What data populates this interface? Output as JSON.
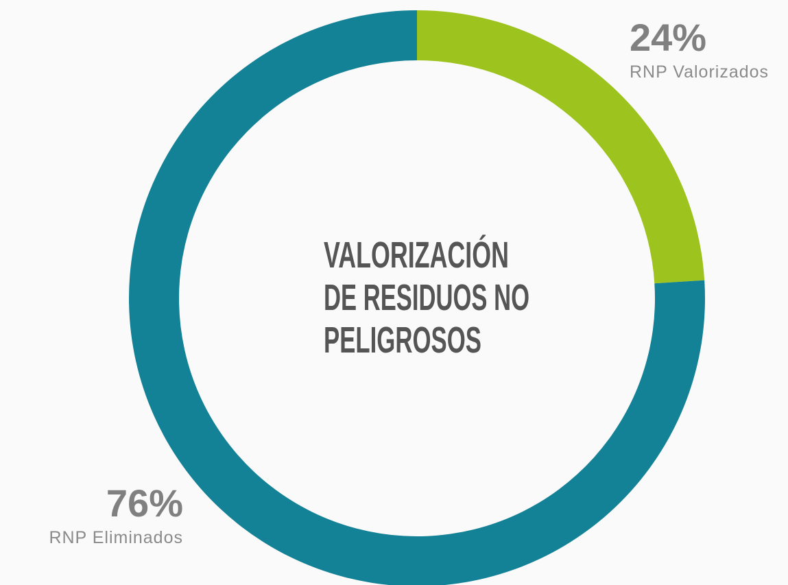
{
  "chart_data": {
    "type": "donut",
    "title": [
      "VALORIZACIÓN",
      "DE RESIDUOS NO",
      "PELIGROSOS"
    ],
    "categories": [
      "RNP Valorizados",
      "RNP Eliminados"
    ],
    "values": [
      24,
      76
    ],
    "value_labels": [
      "24%",
      "76%"
    ],
    "colors": [
      "#9dc31e",
      "#138196"
    ]
  }
}
